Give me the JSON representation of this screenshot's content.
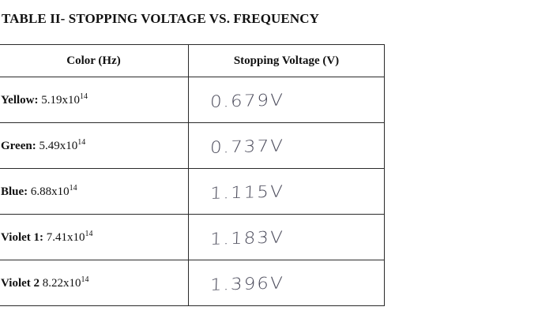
{
  "title": "TABLE II- STOPPING VOLTAGE VS. FREQUENCY",
  "table": {
    "headers": [
      "Color (Hz)",
      "Stopping Voltage (V)"
    ],
    "rows": [
      {
        "label": "Yellow:",
        "mantissa": "5.19x10",
        "exponent": "14",
        "voltage": "0.679V"
      },
      {
        "label": "Green:",
        "mantissa": "5.49x10",
        "exponent": "14",
        "voltage": "0.737V"
      },
      {
        "label": "Blue:",
        "mantissa": "6.88x10",
        "exponent": "14",
        "voltage": "1.115V"
      },
      {
        "label": "Violet 1:",
        "mantissa": "7.41x10",
        "exponent": "14",
        "voltage": "1.183V"
      },
      {
        "label": "Violet 2",
        "mantissa": "8.22x10",
        "exponent": "14",
        "voltage": "1.396V"
      }
    ]
  }
}
